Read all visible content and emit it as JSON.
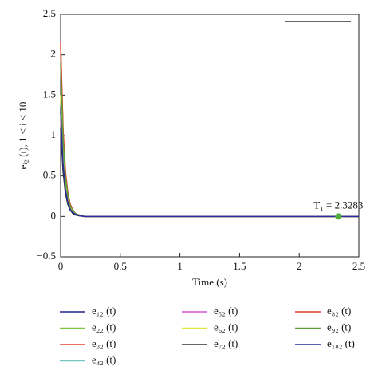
{
  "chart_data": {
    "type": "line",
    "xlabel": "Time (s)",
    "ylabel": "eᵢ₂ (t), 1 ≤ i ≤ 10",
    "x": [
      0,
      0.02,
      0.04,
      0.06,
      0.08,
      0.1,
      0.12,
      0.15,
      0.2,
      2.5
    ],
    "series": [
      {
        "name": "e₁₂ (t)",
        "color": "#23238f",
        "values": [
          1.35,
          0.69,
          0.35,
          0.19,
          0.09,
          0.05,
          0.03,
          0.01,
          0,
          0
        ]
      },
      {
        "name": "e₂₂ (t)",
        "color": "#7cc242",
        "values": [
          2,
          1.02,
          0.52,
          0.28,
          0.14,
          0.08,
          0.04,
          0.02,
          0,
          0
        ]
      },
      {
        "name": "e₃₂ (t)",
        "color": "#e5432d",
        "values": [
          2.1,
          1.07,
          0.55,
          0.29,
          0.15,
          0.08,
          0.04,
          0.02,
          0,
          0
        ]
      },
      {
        "name": "e₄₂ (t)",
        "color": "#74c7c3",
        "values": [
          1.3,
          0.66,
          0.34,
          0.18,
          0.09,
          0.05,
          0.03,
          0.01,
          0,
          0
        ]
      },
      {
        "name": "e₅₂ (t)",
        "color": "#d253cf",
        "values": [
          1.2,
          0.61,
          0.31,
          0.17,
          0.08,
          0.05,
          0.02,
          0.01,
          0,
          0
        ]
      },
      {
        "name": "e₆₂ (t)",
        "color": "#e6e43c",
        "values": [
          1.5,
          0.77,
          0.39,
          0.21,
          0.11,
          0.06,
          0.03,
          0.02,
          0,
          0
        ]
      },
      {
        "name": "e₇₂ (t)",
        "color": "#333333",
        "values": [
          1.1,
          0.56,
          0.29,
          0.15,
          0.08,
          0.04,
          0.02,
          0.01,
          0,
          0
        ]
      },
      {
        "name": "e₈₂ (t)",
        "color": "#dd4527",
        "values": [
          2.15,
          1.1,
          0.56,
          0.3,
          0.15,
          0.09,
          0.04,
          0.02,
          0,
          0
        ]
      },
      {
        "name": "e₉₂ (t)",
        "color": "#5c9f3b",
        "values": [
          1.9,
          0.97,
          0.49,
          0.27,
          0.13,
          0.08,
          0.04,
          0.02,
          0,
          0
        ]
      },
      {
        "name": "e₁₀₂ (t)",
        "color": "#2b2ba0",
        "values": [
          1.3,
          0.66,
          0.34,
          0.18,
          0.09,
          0.05,
          0.03,
          0.01,
          0,
          0
        ]
      }
    ],
    "annotation": {
      "text": "T₁ = 2.3283",
      "x": 2.3283,
      "y": 0,
      "color": "#4caf3a"
    },
    "xlim": [
      0,
      2.5
    ],
    "ylim": [
      -0.5,
      2.5
    ],
    "xticks": [
      0,
      0.5,
      1,
      1.5,
      2,
      2.5
    ],
    "yticks": [
      {
        "value": -0.5,
        "label": "−0.5"
      },
      0,
      0.5,
      1,
      1.5,
      2,
      2.5
    ]
  }
}
